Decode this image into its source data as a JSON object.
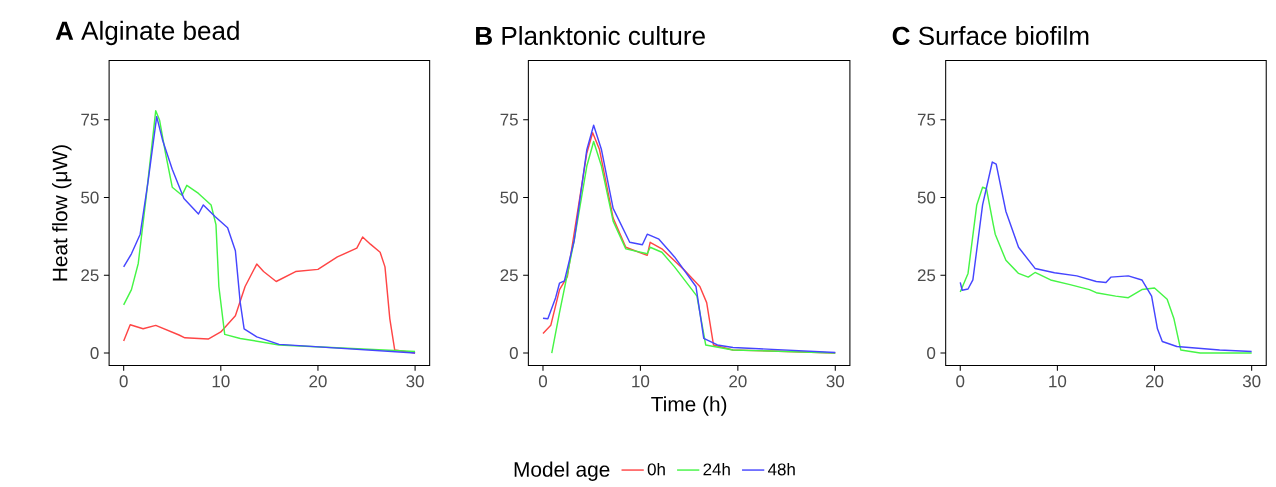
{
  "chart_data": [
    {
      "type": "line",
      "title": "**A** Alginate bead",
      "ylabel": "Heat flow (μW)",
      "xlim": [
        -1.5,
        31.5
      ],
      "ylim": [
        -4,
        94
      ],
      "xticks": [
        0,
        10,
        20,
        30
      ],
      "yticks": [
        0,
        25,
        50,
        75
      ],
      "series": [
        {
          "color": "#ff4545",
          "x": [
            0,
            0.67,
            2,
            3.3,
            5.7,
            6.3,
            8.7,
            10,
            11.5,
            12.5,
            13.7,
            14.4,
            15.7,
            17.7,
            20,
            22,
            24,
            24.6,
            25.4,
            26.4,
            26.9,
            27.4,
            27.9,
            30
          ],
          "values": [
            3.9,
            9.1,
            7.8,
            8.9,
            5.8,
            4.9,
            4.5,
            6.8,
            12,
            21.4,
            28.6,
            26.2,
            23,
            26.2,
            26.9,
            30.9,
            33.7,
            37.3,
            35,
            32.4,
            27.7,
            11,
            1,
            0
          ]
        },
        {
          "color": "#45f545",
          "x": [
            0,
            0.8,
            1.5,
            2.3,
            3.3,
            3.7,
            4.3,
            5,
            6,
            6.5,
            7.7,
            9,
            9.5,
            9.8,
            10.4,
            12,
            16,
            30
          ],
          "values": [
            15.5,
            20.4,
            28.8,
            49.7,
            77.9,
            74.8,
            64.3,
            53.3,
            50.7,
            53.9,
            51.3,
            47.6,
            41.3,
            21.4,
            6,
            4.7,
            2.6,
            0.5
          ]
        },
        {
          "color": "#4545ff",
          "x": [
            0,
            0.8,
            1.7,
            2.5,
            3.4,
            4,
            5,
            6.2,
            7.7,
            8.2,
            9.4,
            10.7,
            11.5,
            12,
            12.4,
            13.7,
            16,
            30
          ],
          "values": [
            27.7,
            31.9,
            38.2,
            54.9,
            76,
            68.5,
            59.1,
            49.7,
            44.7,
            47.6,
            43.9,
            40.3,
            32.9,
            16.2,
            7.8,
            5.2,
            2.8,
            0
          ]
        }
      ]
    },
    {
      "type": "line",
      "title": "**B** Planktonic culture",
      "xlabel": "Time (h)",
      "legend_title": "Model age",
      "legend": "bottom",
      "xlim": [
        -1.5,
        31.5
      ],
      "ylim": [
        -4,
        94
      ],
      "xticks": [
        0,
        10,
        20,
        30
      ],
      "yticks": [
        0,
        25,
        50,
        75
      ],
      "series": [
        {
          "name": "0h",
          "color": "#ff4545",
          "x": [
            0,
            0.8,
            1.7,
            2.5,
            4.5,
            5.1,
            5.8,
            7.2,
            8.5,
            10.7,
            11,
            12.2,
            14.5,
            16.1,
            16.8,
            17.5,
            19.5,
            30
          ],
          "values": [
            6.3,
            8.9,
            20.4,
            24.6,
            64.3,
            70.8,
            65.4,
            43.4,
            34,
            31.4,
            35.6,
            33.5,
            26.7,
            21.4,
            16.2,
            2.6,
            1,
            0
          ]
        },
        {
          "name": "24h",
          "color": "#45f545",
          "x": [
            0.9,
            1.7,
            3.2,
            4.5,
            5.2,
            6,
            7.2,
            8.5,
            10.7,
            11,
            12.2,
            13.5,
            15.8,
            16.7,
            19.5,
            30
          ],
          "values": [
            0,
            13.1,
            36.1,
            60.1,
            68,
            60.1,
            42.4,
            33.5,
            31.9,
            34,
            32.4,
            27.7,
            18.3,
            2.6,
            1,
            0
          ]
        },
        {
          "name": "48h",
          "color": "#4545ff",
          "x": [
            0,
            0.5,
            1.3,
            1.7,
            2.2,
            3.2,
            4.5,
            5.2,
            6,
            7.2,
            8.9,
            10.2,
            10.7,
            11.9,
            13.5,
            15.7,
            16.2,
            16.5,
            17.9,
            19.5,
            30
          ],
          "values": [
            11.2,
            11,
            17.8,
            22.5,
            23.2,
            36.1,
            65.4,
            73.2,
            65.4,
            46.5,
            35.6,
            34.8,
            38.2,
            36.6,
            30.9,
            21.4,
            11,
            4.7,
            2.6,
            1.8,
            0.2
          ]
        }
      ]
    },
    {
      "type": "line",
      "title": "**C** Surface biofilm",
      "xlim": [
        -1.5,
        31.5
      ],
      "ylim": [
        -4,
        94
      ],
      "xticks": [
        0,
        10,
        20,
        30
      ],
      "yticks": [
        0,
        25,
        50,
        75
      ],
      "series": [
        {
          "color": "#45f545",
          "x": [
            0,
            0.8,
            1.7,
            2.3,
            2.7,
            3.4,
            3.6,
            4.7,
            6,
            7,
            7.7,
            9.3,
            11.3,
            13.3,
            14,
            16,
            17.3,
            18.7,
            20,
            21.3,
            22,
            22.7,
            24.7,
            30
          ],
          "values": [
            19.6,
            25.6,
            47.6,
            53.3,
            52.8,
            41.3,
            38.2,
            29.8,
            25.6,
            24.4,
            25.9,
            23.5,
            22,
            20.4,
            19.4,
            18.3,
            17.8,
            20.4,
            20.9,
            17.3,
            11,
            1,
            0,
            0
          ]
        },
        {
          "color": "#4545ff",
          "x": [
            0,
            0.2,
            0.8,
            1.3,
            2.3,
            3.3,
            3.7,
            4.7,
            6,
            7.7,
            9.7,
            12,
            14,
            15,
            15.5,
            17.3,
            18.7,
            19.7,
            20.3,
            20.8,
            22.3,
            26.7,
            30
          ],
          "values": [
            22.7,
            20.2,
            20.6,
            23.5,
            47.6,
            61.4,
            60.7,
            45.5,
            34,
            27.2,
            25.8,
            24.8,
            23,
            22.7,
            24.4,
            24.8,
            23.5,
            18.3,
            7.8,
            3.7,
            2.1,
            1,
            0.5
          ]
        }
      ]
    }
  ]
}
